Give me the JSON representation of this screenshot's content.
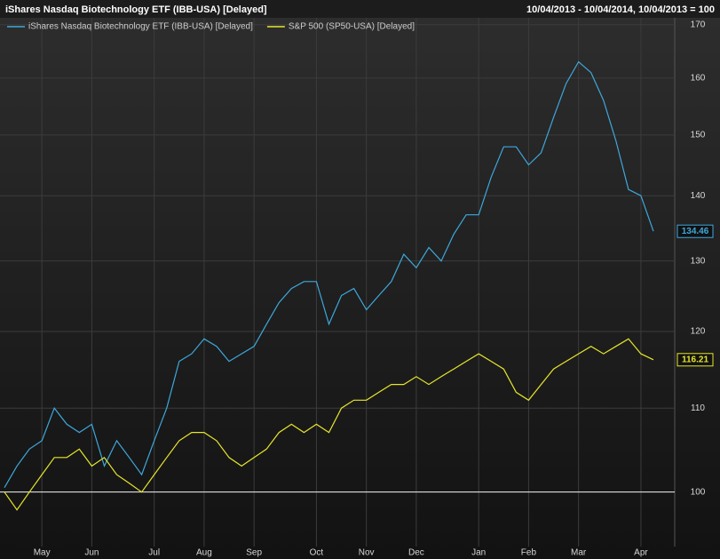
{
  "chart_data": {
    "type": "line",
    "title": "iShares Nasdaq Biotechnology ETF (IBB-USA) [Delayed]",
    "subtitle": "10/04/2013 - 10/04/2014, 10/04/2013 = 100",
    "categories": [
      null,
      null,
      null,
      "May",
      null,
      null,
      null,
      "Jun",
      null,
      null,
      null,
      null,
      "Jul",
      null,
      null,
      null,
      "Aug",
      null,
      null,
      null,
      "Sep",
      null,
      null,
      null,
      null,
      "Oct",
      null,
      null,
      null,
      "Nov",
      null,
      null,
      null,
      "Dec",
      null,
      null,
      null,
      null,
      "Jan",
      null,
      null,
      null,
      "Feb",
      null,
      null,
      null,
      "Mar",
      null,
      null,
      null,
      null,
      "Apr",
      null
    ],
    "series": [
      {
        "name": "iShares Nasdaq Biotechnology ETF (IBB-USA) [Delayed]",
        "color": "#3ea8dc",
        "values": [
          100.5,
          103,
          105,
          106,
          110,
          108,
          107,
          108,
          103,
          106,
          104,
          102,
          106,
          110,
          116,
          117,
          119,
          118,
          116,
          117,
          118,
          121,
          124,
          126,
          127,
          127,
          121,
          125,
          126,
          123,
          125,
          127,
          131,
          129,
          132,
          130,
          134,
          137,
          137,
          143,
          148,
          148,
          145,
          147,
          153,
          159,
          163,
          161,
          156,
          149,
          141,
          140,
          134.46
        ]
      },
      {
        "name": "S&P 500 (SP50-USA) [Delayed]",
        "color": "#e6e62c",
        "values": [
          100,
          98,
          100,
          102,
          104,
          104,
          105,
          103,
          104,
          102,
          101,
          100,
          102,
          104,
          106,
          107,
          107,
          106,
          104,
          103,
          104,
          105,
          107,
          108,
          107,
          108,
          107,
          110,
          111,
          111,
          112,
          113,
          113,
          114,
          113,
          114,
          115,
          116,
          117,
          116,
          115,
          112,
          111,
          113,
          115,
          116,
          117,
          118,
          117,
          118,
          119,
          117,
          116.21
        ]
      }
    ],
    "ylim": [
      94,
      171
    ],
    "yticks": [
      100,
      110,
      120,
      130,
      140,
      150,
      160,
      170
    ],
    "log_scale": true,
    "grid": true,
    "reference_line": 100
  }
}
